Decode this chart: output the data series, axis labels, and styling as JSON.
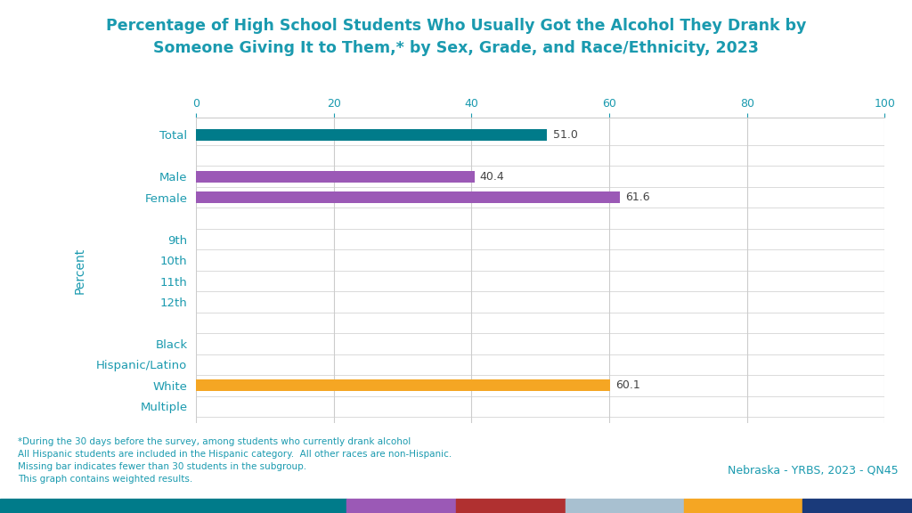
{
  "title": "Percentage of High School Students Who Usually Got the Alcohol They Drank by\nSomeone Giving It to Them,* by Sex, Grade, and Race/Ethnicity, 2023",
  "title_color": "#1A9AAF",
  "categories": [
    "Total",
    "",
    "Male",
    "Female",
    "",
    "9th",
    "10th",
    "11th",
    "12th",
    "",
    "Black",
    "Hispanic/Latino",
    "White",
    "Multiple"
  ],
  "values": [
    51.0,
    null,
    40.4,
    61.6,
    null,
    null,
    null,
    null,
    null,
    null,
    null,
    null,
    60.1,
    null
  ],
  "bar_colors": [
    "#007B8A",
    null,
    "#9B59B6",
    "#9B59B6",
    null,
    null,
    null,
    null,
    null,
    null,
    null,
    null,
    "#F5A623",
    null
  ],
  "xlim": [
    0,
    100
  ],
  "xticks": [
    0,
    20,
    40,
    60,
    80,
    100
  ],
  "ylabel": "Percent",
  "footnote_lines": [
    "*During the 30 days before the survey, among students who currently drank alcohol",
    "All Hispanic students are included in the Hispanic category.  All other races are non-Hispanic.",
    "Missing bar indicates fewer than 30 students in the subgroup.",
    "This graph contains weighted results."
  ],
  "footnote_color": "#1A9AAF",
  "source_text": "Nebraska - YRBS, 2023 - QN45",
  "source_color": "#1A9AAF",
  "bar_height": 0.55,
  "background_color": "#FFFFFF",
  "grid_color": "#CCCCCC",
  "tick_color": "#1A9AAF",
  "ylabel_color": "#1A9AAF",
  "bottom_bar_colors": [
    "#007B8A",
    "#9B59B6",
    "#B03030",
    "#A8C0D0",
    "#F5A623",
    "#1A3A7A"
  ],
  "bottom_bar_widths": [
    0.38,
    0.12,
    0.12,
    0.13,
    0.13,
    0.12
  ]
}
